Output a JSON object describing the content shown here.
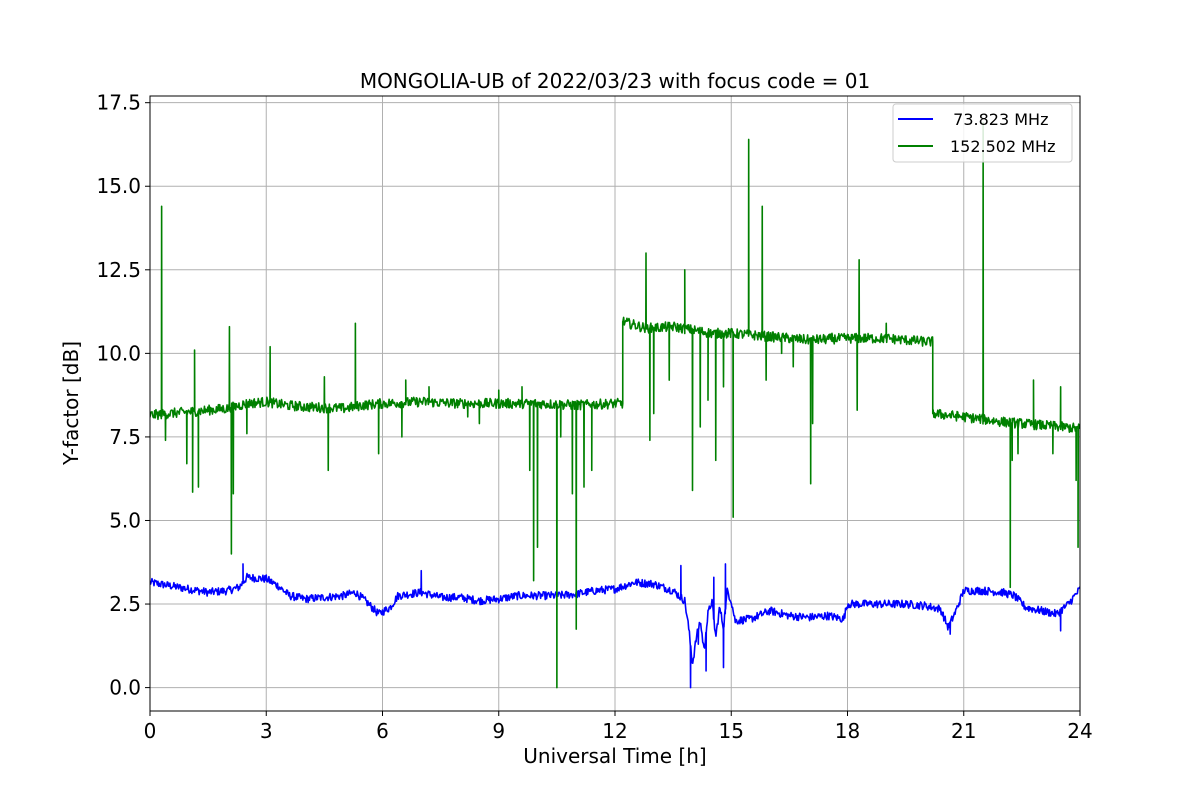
{
  "chart_data": {
    "type": "line",
    "title": "MONGOLIA-UB of 2022/03/23 with focus code = 01",
    "xlabel": "Universal Time [h]",
    "ylabel": "Y-factor [dB]",
    "xlim": [
      0,
      24
    ],
    "ylim": [
      -0.7,
      17.7
    ],
    "xticks": [
      0,
      3,
      6,
      9,
      12,
      15,
      18,
      21,
      24
    ],
    "xtick_labels": [
      "0",
      "3",
      "6",
      "9",
      "12",
      "15",
      "18",
      "21",
      "24"
    ],
    "yticks": [
      0,
      2.5,
      5,
      7.5,
      10,
      12.5,
      15,
      17.5
    ],
    "ytick_labels": [
      "0.0",
      "2.5",
      "5.0",
      "7.5",
      "10.0",
      "12.5",
      "15.0",
      "17.5"
    ],
    "grid": true,
    "legend_position": "top-right",
    "series": [
      {
        "name": "  73.823 MHz",
        "color": "#0000ff",
        "baseline": [
          [
            0,
            3.15
          ],
          [
            0.5,
            3.05
          ],
          [
            1,
            2.95
          ],
          [
            1.5,
            2.85
          ],
          [
            2,
            2.9
          ],
          [
            2.3,
            3.0
          ],
          [
            2.5,
            3.3
          ],
          [
            3,
            3.25
          ],
          [
            3.3,
            3.05
          ],
          [
            3.6,
            2.75
          ],
          [
            4,
            2.65
          ],
          [
            4.5,
            2.7
          ],
          [
            5,
            2.75
          ],
          [
            5.3,
            2.85
          ],
          [
            5.6,
            2.55
          ],
          [
            5.9,
            2.2
          ],
          [
            6.2,
            2.4
          ],
          [
            6.4,
            2.75
          ],
          [
            7,
            2.85
          ],
          [
            7.5,
            2.7
          ],
          [
            8,
            2.7
          ],
          [
            8.5,
            2.6
          ],
          [
            9,
            2.65
          ],
          [
            9.5,
            2.75
          ],
          [
            10,
            2.75
          ],
          [
            10.5,
            2.75
          ],
          [
            11,
            2.8
          ],
          [
            11.5,
            2.9
          ],
          [
            12,
            2.95
          ],
          [
            12.5,
            3.15
          ],
          [
            13,
            3.1
          ],
          [
            13.5,
            2.9
          ],
          [
            13.8,
            2.6
          ],
          [
            13.9,
            1.8
          ],
          [
            14,
            0.7
          ],
          [
            14.1,
            1.5
          ],
          [
            14.2,
            2.0
          ],
          [
            14.3,
            1.1
          ],
          [
            14.4,
            2.2
          ],
          [
            14.5,
            2.6
          ],
          [
            14.6,
            1.5
          ],
          [
            14.7,
            2.4
          ],
          [
            14.8,
            1.8
          ],
          [
            14.9,
            2.9
          ],
          [
            15.0,
            2.6
          ],
          [
            15.1,
            2.0
          ],
          [
            15.5,
            2.05
          ],
          [
            16,
            2.3
          ],
          [
            16.5,
            2.15
          ],
          [
            17,
            2.1
          ],
          [
            17.5,
            2.15
          ],
          [
            17.9,
            2.05
          ],
          [
            18,
            2.5
          ],
          [
            18.5,
            2.5
          ],
          [
            19,
            2.5
          ],
          [
            19.5,
            2.5
          ],
          [
            20,
            2.45
          ],
          [
            20.4,
            2.35
          ],
          [
            20.6,
            1.8
          ],
          [
            20.8,
            2.3
          ],
          [
            21,
            2.9
          ],
          [
            21.5,
            2.9
          ],
          [
            22,
            2.85
          ],
          [
            22.3,
            2.75
          ],
          [
            22.6,
            2.4
          ],
          [
            23,
            2.3
          ],
          [
            23.4,
            2.2
          ],
          [
            23.7,
            2.5
          ],
          [
            24,
            2.95
          ]
        ],
        "noise": 0.12,
        "spikes": [
          [
            2.4,
            3.7
          ],
          [
            7.0,
            3.5
          ],
          [
            13.7,
            3.65
          ],
          [
            13.95,
            0.0
          ],
          [
            14.15,
            1.3
          ],
          [
            14.35,
            0.5
          ],
          [
            14.55,
            3.3
          ],
          [
            14.8,
            0.6
          ],
          [
            14.85,
            3.7
          ],
          [
            20.65,
            1.6
          ],
          [
            23.5,
            1.7
          ]
        ]
      },
      {
        "name": "152.502 MHz",
        "color": "#008000",
        "baseline": [
          [
            0,
            8.15
          ],
          [
            1,
            8.25
          ],
          [
            2,
            8.35
          ],
          [
            2.5,
            8.5
          ],
          [
            3,
            8.55
          ],
          [
            3.5,
            8.45
          ],
          [
            4,
            8.4
          ],
          [
            5,
            8.35
          ],
          [
            5.5,
            8.45
          ],
          [
            6,
            8.5
          ],
          [
            7,
            8.55
          ],
          [
            8,
            8.5
          ],
          [
            9,
            8.5
          ],
          [
            10,
            8.5
          ],
          [
            11,
            8.45
          ],
          [
            12,
            8.5
          ],
          [
            12.2,
            8.5
          ],
          [
            12.2,
            10.95
          ],
          [
            12.8,
            10.75
          ],
          [
            13.5,
            10.8
          ],
          [
            14,
            10.7
          ],
          [
            14.5,
            10.6
          ],
          [
            15,
            10.6
          ],
          [
            15.5,
            10.55
          ],
          [
            16,
            10.5
          ],
          [
            17,
            10.4
          ],
          [
            18,
            10.45
          ],
          [
            19,
            10.45
          ],
          [
            20,
            10.35
          ],
          [
            20.2,
            10.35
          ],
          [
            20.2,
            8.2
          ],
          [
            21,
            8.1
          ],
          [
            22,
            7.95
          ],
          [
            23,
            7.85
          ],
          [
            24,
            7.75
          ]
        ],
        "noise": 0.15,
        "spikes": [
          [
            0.3,
            14.4
          ],
          [
            0.4,
            7.4
          ],
          [
            0.95,
            6.7
          ],
          [
            1.1,
            5.85
          ],
          [
            1.15,
            10.1
          ],
          [
            1.25,
            6.0
          ],
          [
            2.05,
            10.8
          ],
          [
            2.1,
            4.0
          ],
          [
            2.15,
            5.8
          ],
          [
            2.5,
            7.6
          ],
          [
            3.1,
            10.2
          ],
          [
            4.5,
            9.3
          ],
          [
            4.6,
            6.5
          ],
          [
            5.3,
            10.9
          ],
          [
            5.9,
            7.0
          ],
          [
            6.5,
            7.5
          ],
          [
            6.6,
            9.2
          ],
          [
            7.2,
            9.0
          ],
          [
            8.2,
            8.1
          ],
          [
            8.5,
            7.9
          ],
          [
            9.0,
            8.9
          ],
          [
            9.6,
            9.0
          ],
          [
            9.8,
            6.5
          ],
          [
            9.9,
            3.2
          ],
          [
            10.0,
            4.2
          ],
          [
            10.5,
            0.0
          ],
          [
            10.6,
            7.5
          ],
          [
            10.9,
            5.8
          ],
          [
            11.0,
            1.75
          ],
          [
            11.2,
            6.0
          ],
          [
            11.4,
            6.5
          ],
          [
            12.8,
            13.0
          ],
          [
            12.9,
            7.4
          ],
          [
            13.0,
            8.2
          ],
          [
            13.4,
            9.2
          ],
          [
            13.8,
            12.5
          ],
          [
            14.0,
            5.9
          ],
          [
            14.2,
            7.8
          ],
          [
            14.4,
            8.6
          ],
          [
            14.6,
            6.8
          ],
          [
            14.8,
            9.0
          ],
          [
            15.05,
            5.1
          ],
          [
            15.45,
            16.4
          ],
          [
            15.8,
            14.4
          ],
          [
            15.9,
            9.2
          ],
          [
            16.3,
            10.0
          ],
          [
            16.6,
            9.6
          ],
          [
            17.05,
            6.1
          ],
          [
            17.1,
            7.9
          ],
          [
            17.6,
            10.6
          ],
          [
            18.25,
            8.3
          ],
          [
            18.3,
            12.8
          ],
          [
            19.0,
            10.9
          ],
          [
            21.5,
            16.9
          ],
          [
            22.2,
            3.0
          ],
          [
            22.25,
            6.8
          ],
          [
            22.4,
            7.0
          ],
          [
            22.8,
            9.2
          ],
          [
            23.3,
            7.0
          ],
          [
            23.5,
            9.0
          ],
          [
            23.9,
            6.2
          ],
          [
            23.95,
            4.2
          ]
        ]
      }
    ]
  }
}
